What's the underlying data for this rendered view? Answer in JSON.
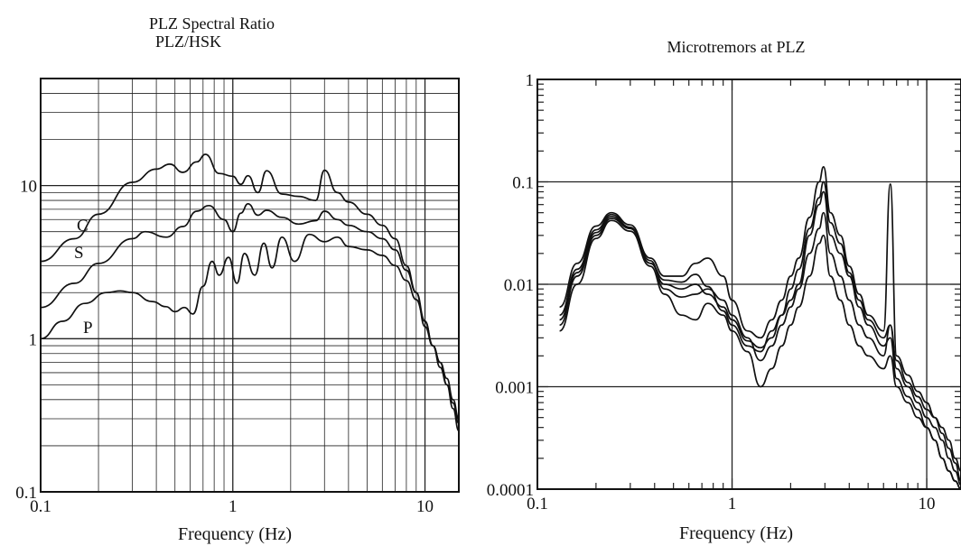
{
  "chart_data": [
    {
      "type": "line",
      "title": "PLZ Spectral Ratio",
      "subtitle": "PLZ/HSK",
      "xlabel": "Frequency (Hz)",
      "ylabel": "",
      "x_scale": "log",
      "y_scale": "log",
      "xlim": [
        0.1,
        15
      ],
      "ylim": [
        0.1,
        50
      ],
      "grid": true,
      "x_ticks": [
        "0.1",
        "1",
        "10"
      ],
      "y_ticks": [
        "0.1",
        "1",
        "10"
      ],
      "series": [
        {
          "name": "C",
          "x": [
            0.1,
            0.15,
            0.2,
            0.3,
            0.4,
            0.47,
            0.55,
            0.65,
            0.72,
            0.85,
            1.0,
            1.1,
            1.2,
            1.35,
            1.5,
            1.8,
            2.2,
            2.7,
            3.0,
            3.5,
            4.0,
            5.0,
            6.0,
            7.0,
            8.0,
            9.0,
            10.0,
            11.0,
            12.0,
            13.0,
            14.0,
            15.0
          ],
          "y": [
            3.2,
            4.5,
            6.5,
            10.5,
            12.8,
            13.8,
            12.2,
            14.3,
            16.0,
            12.0,
            11.5,
            10.2,
            11.6,
            9.0,
            12.5,
            8.8,
            8.5,
            8.0,
            12.6,
            9.0,
            7.8,
            6.5,
            5.5,
            4.5,
            3.0,
            2.0,
            1.2,
            0.9,
            0.7,
            0.55,
            0.4,
            0.3
          ]
        },
        {
          "name": "S",
          "x": [
            0.1,
            0.15,
            0.2,
            0.3,
            0.35,
            0.45,
            0.55,
            0.65,
            0.75,
            0.9,
            1.0,
            1.1,
            1.2,
            1.35,
            1.5,
            1.8,
            2.2,
            2.7,
            3.0,
            3.5,
            4.0,
            5.0,
            6.0,
            7.0,
            8.0,
            9.0,
            10.0,
            11.0,
            12.0,
            13.0,
            14.0,
            15.0
          ],
          "y": [
            1.6,
            2.3,
            3.1,
            4.5,
            5.0,
            4.6,
            5.4,
            6.8,
            7.4,
            6.0,
            5.0,
            6.6,
            7.6,
            6.4,
            6.9,
            6.2,
            5.6,
            5.9,
            6.8,
            6.0,
            5.5,
            5.0,
            4.5,
            3.8,
            2.8,
            2.0,
            1.3,
            0.9,
            0.7,
            0.5,
            0.38,
            0.28
          ]
        },
        {
          "name": "P",
          "x": [
            0.1,
            0.13,
            0.17,
            0.22,
            0.26,
            0.3,
            0.38,
            0.45,
            0.5,
            0.56,
            0.62,
            0.7,
            0.78,
            0.85,
            0.95,
            1.05,
            1.15,
            1.3,
            1.45,
            1.6,
            1.8,
            2.1,
            2.5,
            3.0,
            3.5,
            4.0,
            5.0,
            6.0,
            7.0,
            8.0,
            9.0,
            10.0,
            11.0,
            12.0,
            13.0,
            14.0,
            15.0
          ],
          "y": [
            1.0,
            1.3,
            1.7,
            2.0,
            2.05,
            2.0,
            1.75,
            1.62,
            1.5,
            1.6,
            1.45,
            2.2,
            3.2,
            2.6,
            3.4,
            2.3,
            3.6,
            2.6,
            4.2,
            2.9,
            4.6,
            3.2,
            4.8,
            4.3,
            4.6,
            4.0,
            3.8,
            3.5,
            3.0,
            2.4,
            1.8,
            1.3,
            0.9,
            0.65,
            0.5,
            0.35,
            0.25
          ]
        }
      ],
      "curve_labels": [
        "C",
        "S",
        "P"
      ]
    },
    {
      "type": "line",
      "title": "Microtremors at PLZ",
      "xlabel": "Frequency (Hz)",
      "ylabel": "",
      "x_scale": "log",
      "y_scale": "log",
      "xlim": [
        0.1,
        15
      ],
      "ylim": [
        0.0001,
        1
      ],
      "grid": true,
      "x_ticks": [
        "0.1",
        "1",
        "10"
      ],
      "y_ticks": [
        "0.0001",
        "0.001",
        "0.01",
        "0.1",
        "1"
      ],
      "series": [
        {
          "x": [
            0.13,
            0.16,
            0.2,
            0.24,
            0.3,
            0.38,
            0.45,
            0.55,
            0.65,
            0.75,
            0.9,
            1.0,
            1.2,
            1.4,
            1.6,
            1.8,
            2.0,
            2.2,
            2.5,
            2.8,
            2.95,
            3.2,
            3.6,
            4.0,
            4.5,
            5.0,
            6.0,
            6.5,
            7.0,
            8.0,
            9.0,
            10.0,
            11.0,
            12.0,
            13.0,
            14.0,
            15.0
          ],
          "y": [
            0.004,
            0.012,
            0.03,
            0.044,
            0.035,
            0.016,
            0.011,
            0.0105,
            0.0125,
            0.0095,
            0.0055,
            0.004,
            0.0025,
            0.0022,
            0.0035,
            0.005,
            0.007,
            0.01,
            0.03,
            0.06,
            0.08,
            0.03,
            0.02,
            0.012,
            0.006,
            0.004,
            0.0025,
            0.003,
            0.0012,
            0.0008,
            0.0006,
            0.0004,
            0.0003,
            0.0002,
            0.00015,
            0.00012,
            0.0001
          ]
        },
        {
          "x": [
            0.13,
            0.16,
            0.2,
            0.24,
            0.3,
            0.38,
            0.45,
            0.55,
            0.65,
            0.75,
            0.9,
            1.0,
            1.2,
            1.4,
            1.6,
            1.8,
            2.0,
            2.2,
            2.5,
            2.8,
            2.95,
            3.2,
            3.6,
            4.0,
            4.5,
            5.0,
            6.0,
            6.5,
            7.0,
            8.0,
            9.0,
            10.0,
            11.0,
            12.0,
            13.0,
            14.0,
            15.0
          ],
          "y": [
            0.006,
            0.016,
            0.037,
            0.05,
            0.038,
            0.018,
            0.012,
            0.012,
            0.016,
            0.018,
            0.012,
            0.007,
            0.0035,
            0.003,
            0.0045,
            0.007,
            0.012,
            0.018,
            0.045,
            0.1,
            0.14,
            0.05,
            0.03,
            0.015,
            0.008,
            0.005,
            0.0035,
            0.095,
            0.002,
            0.0013,
            0.0009,
            0.0007,
            0.0005,
            0.00035,
            0.00025,
            0.00018,
            0.00012
          ]
        },
        {
          "x": [
            0.13,
            0.16,
            0.2,
            0.24,
            0.3,
            0.38,
            0.45,
            0.55,
            0.65,
            0.75,
            0.9,
            1.0,
            1.2,
            1.4,
            1.6,
            1.8,
            2.0,
            2.2,
            2.5,
            2.8,
            2.95,
            3.2,
            3.6,
            4.0,
            4.5,
            5.0,
            6.0,
            6.5,
            7.0,
            8.0,
            9.0,
            10.0,
            11.0,
            12.0,
            13.0,
            14.0,
            15.0
          ],
          "y": [
            0.005,
            0.014,
            0.034,
            0.048,
            0.036,
            0.017,
            0.009,
            0.0075,
            0.008,
            0.009,
            0.007,
            0.005,
            0.003,
            0.0018,
            0.0025,
            0.004,
            0.006,
            0.009,
            0.02,
            0.035,
            0.05,
            0.02,
            0.012,
            0.007,
            0.004,
            0.003,
            0.002,
            0.004,
            0.0015,
            0.001,
            0.0007,
            0.0005,
            0.0004,
            0.0003,
            0.0002,
            0.00015,
            0.00011
          ]
        },
        {
          "x": [
            0.13,
            0.16,
            0.2,
            0.24,
            0.3,
            0.38,
            0.45,
            0.55,
            0.65,
            0.75,
            0.9,
            1.0,
            1.2,
            1.4,
            1.6,
            1.8,
            2.0,
            2.2,
            2.5,
            2.8,
            2.95,
            3.2,
            3.6,
            4.0,
            4.5,
            5.0,
            6.0,
            6.5,
            7.0,
            8.0,
            9.0,
            10.0,
            11.0,
            12.0,
            13.0,
            14.0,
            15.0
          ],
          "y": [
            0.0035,
            0.01,
            0.028,
            0.042,
            0.033,
            0.015,
            0.008,
            0.005,
            0.0045,
            0.0065,
            0.005,
            0.0035,
            0.0022,
            0.001,
            0.0015,
            0.0025,
            0.004,
            0.006,
            0.012,
            0.025,
            0.03,
            0.012,
            0.007,
            0.004,
            0.0025,
            0.002,
            0.0015,
            0.002,
            0.001,
            0.0007,
            0.0005,
            0.0004,
            0.0003,
            0.0002,
            0.00015,
            0.00012,
            0.0001
          ]
        },
        {
          "x": [
            0.13,
            0.16,
            0.2,
            0.24,
            0.3,
            0.38,
            0.45,
            0.55,
            0.65,
            0.75,
            0.9,
            1.0,
            1.2,
            1.4,
            1.6,
            1.8,
            2.0,
            2.2,
            2.5,
            2.8,
            2.95,
            3.2,
            3.6,
            4.0,
            4.5,
            5.0,
            6.0,
            6.5,
            7.0,
            8.0,
            9.0,
            10.0,
            11.0,
            12.0,
            13.0,
            14.0,
            15.0
          ],
          "y": [
            0.0045,
            0.013,
            0.032,
            0.046,
            0.035,
            0.016,
            0.01,
            0.009,
            0.01,
            0.008,
            0.006,
            0.0045,
            0.0028,
            0.0024,
            0.003,
            0.005,
            0.009,
            0.014,
            0.035,
            0.07,
            0.1,
            0.04,
            0.025,
            0.013,
            0.007,
            0.0045,
            0.003,
            0.004,
            0.0018,
            0.0011,
            0.0008,
            0.0006,
            0.0005,
            0.0004,
            0.0003,
            0.0002,
            0.00015
          ]
        }
      ]
    }
  ]
}
